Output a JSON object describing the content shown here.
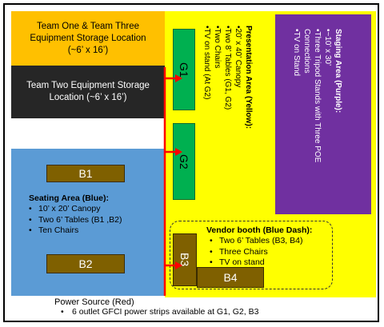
{
  "storage": {
    "team_one_three": [
      "Team One & Team Three",
      "Equipment Storage Location",
      "(~6’ x 16’)"
    ],
    "team_two": [
      "Team Two Equipment Storage",
      "Location (~6’ x 16’)"
    ]
  },
  "seating": {
    "title": "Seating Area (Blue):",
    "items": [
      "10’ x 20’ Canopy",
      "Two 6’ Tables (B1 ,B2)",
      "Ten Chairs"
    ],
    "b1": "B1",
    "b2": "B2"
  },
  "presentation": {
    "title": "Presentation Area (Yellow):",
    "items": [
      "20’ x 40’ Canopy",
      "Two 8’ Tables (G1, G2)",
      "Two Chairs",
      "TV on stand (At G2)"
    ],
    "g1": "G1",
    "g2": "G2"
  },
  "staging": {
    "title": "Staging Area (Purple):",
    "items": [
      "~10’ x 30’",
      "Three Tripod Stands with Three POE Connections",
      "TV on Stand"
    ]
  },
  "vendor": {
    "title": "Vendor booth (Blue Dash):",
    "items": [
      "Two 6’ Tables (B3, B4)",
      "Three Chairs",
      "TV on stand"
    ],
    "b3": "B3",
    "b4": "B4"
  },
  "power": {
    "title": "Power Source (Red)",
    "detail": "6 outlet GFCI power strips available at G1, G2,  B3"
  },
  "colors": {
    "yellow": "#ffff00",
    "orange": "#ffc000",
    "black": "#262626",
    "blue": "#5b9bd5",
    "purple": "#7030a0",
    "green": "#00b050",
    "brown": "#7f6000",
    "red": "#ff0000"
  }
}
